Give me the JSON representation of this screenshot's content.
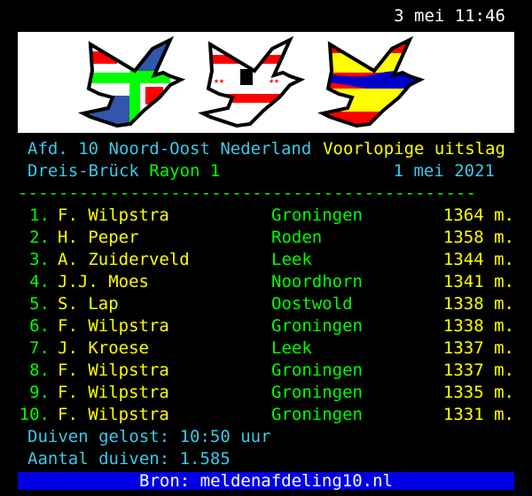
{
  "clock": "3 mei 11:46",
  "banner": {
    "icon": "three-dove-flags-logo",
    "colors": [
      "#ff0000",
      "#00ff00",
      "#3355aa",
      "#ffff00",
      "#0000cc"
    ]
  },
  "header": {
    "department": "Afd. 10 Noord-Oost Nederland",
    "status": "Voorlopige uitslag",
    "race_location": "Dreis-Brück",
    "rayon": "Rayon 1",
    "date": "1 mei 2021",
    "divider": "---------------------------------------------"
  },
  "results": [
    {
      "rank": "1.",
      "name": "F. Wilpstra",
      "place": "Groningen",
      "distance": "1364 m."
    },
    {
      "rank": "2.",
      "name": "H. Peper",
      "place": "Roden",
      "distance": "1358 m."
    },
    {
      "rank": "3.",
      "name": "A. Zuiderveld",
      "place": "Leek",
      "distance": "1344 m."
    },
    {
      "rank": "4.",
      "name": "J.J. Moes",
      "place": "Noordhorn",
      "distance": "1341 m."
    },
    {
      "rank": "5.",
      "name": "S. Lap",
      "place": "Oostwold",
      "distance": "1338 m."
    },
    {
      "rank": "6.",
      "name": "F. Wilpstra",
      "place": "Groningen",
      "distance": "1338 m."
    },
    {
      "rank": "7.",
      "name": "J. Kroese",
      "place": "Leek",
      "distance": "1337 m."
    },
    {
      "rank": "8.",
      "name": "F. Wilpstra",
      "place": "Groningen",
      "distance": "1337 m."
    },
    {
      "rank": "9.",
      "name": "F. Wilpstra",
      "place": "Groningen",
      "distance": "1335 m."
    },
    {
      "rank": "10.",
      "name": "F. Wilpstra",
      "place": "Groningen",
      "distance": "1331 m."
    }
  ],
  "footer": {
    "release": "Duiven gelost: 10:50 uur",
    "count": "Aantal duiven: 1.585",
    "source": "Bron: meldenafdeling10.nl"
  }
}
